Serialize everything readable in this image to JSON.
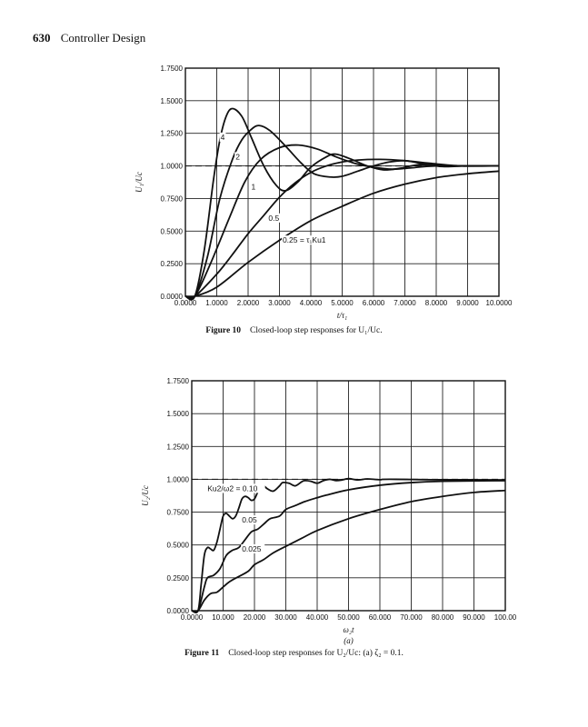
{
  "header": {
    "page_number": "630",
    "section": "Controller Design"
  },
  "figures": [
    {
      "label": "Figure 10",
      "caption": "Closed-loop step responses for U₁/Uc."
    },
    {
      "label": "Figure 11",
      "caption": "Closed-loop step responses for U₂/Uc: (a) ζ₂ = 0.1."
    }
  ],
  "chart_data": [
    {
      "type": "line",
      "title": "",
      "xlabel": "t/τ₁",
      "ylabel": "U₁/Uc",
      "xlim": [
        0,
        10
      ],
      "ylim": [
        0,
        1.75
      ],
      "xticks": [
        "0.0000",
        "1.0000",
        "2.0000",
        "3.0000",
        "4.0000",
        "5.0000",
        "6.0000",
        "7.0000",
        "8.0000",
        "9.0000",
        "10.0000"
      ],
      "yticks": [
        "0.0000",
        "0.2500",
        "0.5000",
        "0.7500",
        "1.0000",
        "1.2500",
        "1.5000",
        "1.7500"
      ],
      "grid": true,
      "reference_line": {
        "y": 1.0,
        "style": "dashed"
      },
      "series": [
        {
          "name": "4",
          "points": [
            [
              0,
              0
            ],
            [
              0.3,
              0
            ],
            [
              0.6,
              0.35
            ],
            [
              0.9,
              0.9
            ],
            [
              1.1,
              1.2
            ],
            [
              1.3,
              1.38
            ],
            [
              1.5,
              1.44
            ],
            [
              1.8,
              1.38
            ],
            [
              2.1,
              1.22
            ],
            [
              2.5,
              1.0
            ],
            [
              2.9,
              0.85
            ],
            [
              3.2,
              0.81
            ],
            [
              3.6,
              0.88
            ],
            [
              4.0,
              0.99
            ],
            [
              4.5,
              1.07
            ],
            [
              4.8,
              1.09
            ],
            [
              5.3,
              1.05
            ],
            [
              5.8,
              1.0
            ],
            [
              6.3,
              0.97
            ],
            [
              6.8,
              0.98
            ],
            [
              7.5,
              1.01
            ],
            [
              8.5,
              1.0
            ],
            [
              10,
              1.0
            ]
          ]
        },
        {
          "name": "2",
          "points": [
            [
              0,
              0
            ],
            [
              0.3,
              0
            ],
            [
              0.7,
              0.3
            ],
            [
              1.1,
              0.75
            ],
            [
              1.5,
              1.05
            ],
            [
              1.8,
              1.2
            ],
            [
              2.1,
              1.28
            ],
            [
              2.35,
              1.31
            ],
            [
              2.7,
              1.27
            ],
            [
              3.2,
              1.15
            ],
            [
              3.7,
              1.02
            ],
            [
              4.1,
              0.94
            ],
            [
              4.6,
              0.915
            ],
            [
              5.0,
              0.92
            ],
            [
              5.5,
              0.96
            ],
            [
              6.0,
              1.0
            ],
            [
              6.5,
              1.03
            ],
            [
              7.0,
              1.04
            ],
            [
              7.5,
              1.02
            ],
            [
              8.2,
              0.995
            ],
            [
              9,
              1.0
            ],
            [
              10,
              1.0
            ]
          ]
        },
        {
          "name": "1",
          "points": [
            [
              0,
              0
            ],
            [
              0.3,
              0
            ],
            [
              0.8,
              0.25
            ],
            [
              1.4,
              0.6
            ],
            [
              1.9,
              0.88
            ],
            [
              2.4,
              1.05
            ],
            [
              3.0,
              1.14
            ],
            [
              3.6,
              1.16
            ],
            [
              4.2,
              1.13
            ],
            [
              4.8,
              1.07
            ],
            [
              5.4,
              1.02
            ],
            [
              6.0,
              0.99
            ],
            [
              6.6,
              0.975
            ],
            [
              7.2,
              0.985
            ],
            [
              8,
              1.0
            ],
            [
              10,
              1.0
            ]
          ]
        },
        {
          "name": "0.5",
          "points": [
            [
              0,
              0
            ],
            [
              0.3,
              0
            ],
            [
              1.0,
              0.17
            ],
            [
              1.5,
              0.32
            ],
            [
              2.0,
              0.48
            ],
            [
              2.5,
              0.62
            ],
            [
              3.0,
              0.76
            ],
            [
              3.5,
              0.87
            ],
            [
              4.0,
              0.95
            ],
            [
              4.5,
              1.0
            ],
            [
              5,
              1.03
            ],
            [
              5.5,
              1.045
            ],
            [
              6.2,
              1.05
            ],
            [
              7.0,
              1.04
            ],
            [
              7.8,
              1.02
            ],
            [
              8.8,
              1.0
            ],
            [
              10,
              1.0
            ]
          ]
        },
        {
          "name": "0.25 = τ₁Ku1",
          "points": [
            [
              0,
              0
            ],
            [
              0.3,
              0
            ],
            [
              1,
              0.07
            ],
            [
              2,
              0.26
            ],
            [
              3,
              0.43
            ],
            [
              4,
              0.58
            ],
            [
              5,
              0.69
            ],
            [
              6,
              0.79
            ],
            [
              7,
              0.86
            ],
            [
              8,
              0.91
            ],
            [
              9,
              0.94
            ],
            [
              10,
              0.96
            ]
          ]
        }
      ],
      "annotations": [
        {
          "text": "4",
          "x": 1.12,
          "y": 1.2
        },
        {
          "text": "2",
          "x": 1.6,
          "y": 1.05
        },
        {
          "text": "1",
          "x": 2.1,
          "y": 0.82
        },
        {
          "text": "0.5",
          "x": 2.65,
          "y": 0.58
        },
        {
          "text": "0.25 = τ₁Ku1",
          "x": 3.1,
          "y": 0.41
        }
      ]
    },
    {
      "type": "line",
      "title": "",
      "xlabel": "ω₂t",
      "sublabel": "(a)",
      "ylabel": "U₂/Uc",
      "xlim": [
        0,
        100
      ],
      "ylim": [
        0,
        1.75
      ],
      "xticks": [
        "0.0000",
        "10.000",
        "20.000",
        "30.000",
        "40.000",
        "50.000",
        "60.000",
        "70.000",
        "80.000",
        "90.000",
        "100.00"
      ],
      "yticks": [
        "0.0000",
        "0.2500",
        "0.5000",
        "0.7500",
        "1.0000",
        "1.2500",
        "1.5000",
        "1.7500"
      ],
      "grid": true,
      "reference_line": {
        "y": 1.0,
        "style": "dashed"
      },
      "series": [
        {
          "name": "Ku2/ω2 = 0.10",
          "points": [
            [
              0,
              0
            ],
            [
              2,
              0
            ],
            [
              3,
              0.2
            ],
            [
              4,
              0.42
            ],
            [
              5,
              0.48
            ],
            [
              6,
              0.47
            ],
            [
              7,
              0.46
            ],
            [
              8,
              0.52
            ],
            [
              9,
              0.62
            ],
            [
              10,
              0.72
            ],
            [
              11,
              0.74
            ],
            [
              12,
              0.72
            ],
            [
              13,
              0.7
            ],
            [
              14,
              0.72
            ],
            [
              15,
              0.78
            ],
            [
              16,
              0.85
            ],
            [
              17,
              0.87
            ],
            [
              18,
              0.86
            ],
            [
              19,
              0.84
            ],
            [
              20,
              0.85
            ],
            [
              21,
              0.9
            ],
            [
              22,
              0.94
            ],
            [
              23,
              0.95
            ],
            [
              24,
              0.93
            ],
            [
              26,
              0.91
            ],
            [
              28,
              0.95
            ],
            [
              29,
              0.975
            ],
            [
              31,
              0.97
            ],
            [
              33,
              0.95
            ],
            [
              35,
              0.98
            ],
            [
              36,
              0.99
            ],
            [
              38,
              0.985
            ],
            [
              40,
              0.97
            ],
            [
              42,
              0.99
            ],
            [
              44,
              1.0
            ],
            [
              46,
              0.99
            ],
            [
              48,
              0.995
            ],
            [
              50,
              1.005
            ],
            [
              53,
              0.995
            ],
            [
              56,
              1.003
            ],
            [
              60,
              0.997
            ],
            [
              65,
              1.0
            ],
            [
              100,
              0.99
            ]
          ]
        },
        {
          "name": "0.05",
          "points": [
            [
              0,
              0
            ],
            [
              2,
              0
            ],
            [
              4,
              0.18
            ],
            [
              5,
              0.25
            ],
            [
              7,
              0.27
            ],
            [
              9,
              0.32
            ],
            [
              11,
              0.42
            ],
            [
              13,
              0.46
            ],
            [
              15,
              0.48
            ],
            [
              17,
              0.54
            ],
            [
              19,
              0.6
            ],
            [
              21,
              0.62
            ],
            [
              23,
              0.66
            ],
            [
              25,
              0.7
            ],
            [
              28,
              0.72
            ],
            [
              30,
              0.77
            ],
            [
              33,
              0.8
            ],
            [
              36,
              0.83
            ],
            [
              40,
              0.86
            ],
            [
              43,
              0.88
            ],
            [
              50,
              0.92
            ],
            [
              60,
              0.955
            ],
            [
              70,
              0.975
            ],
            [
              80,
              0.985
            ],
            [
              100,
              0.99
            ]
          ]
        },
        {
          "name": "0.025",
          "points": [
            [
              0,
              0
            ],
            [
              2,
              0
            ],
            [
              4,
              0.08
            ],
            [
              6,
              0.13
            ],
            [
              8,
              0.14
            ],
            [
              10,
              0.18
            ],
            [
              12,
              0.22
            ],
            [
              15,
              0.26
            ],
            [
              18,
              0.3
            ],
            [
              20,
              0.35
            ],
            [
              23,
              0.39
            ],
            [
              26,
              0.44
            ],
            [
              30,
              0.49
            ],
            [
              35,
              0.55
            ],
            [
              40,
              0.61
            ],
            [
              50,
              0.7
            ],
            [
              60,
              0.77
            ],
            [
              70,
              0.83
            ],
            [
              80,
              0.87
            ],
            [
              90,
              0.9
            ],
            [
              100,
              0.915
            ]
          ]
        }
      ],
      "annotations": [
        {
          "text": "Ku2/ω2 = 0.10",
          "x": 5,
          "y": 0.91
        },
        {
          "text": "0.05",
          "x": 16,
          "y": 0.67
        },
        {
          "text": "0.025",
          "x": 16,
          "y": 0.45
        }
      ]
    }
  ]
}
